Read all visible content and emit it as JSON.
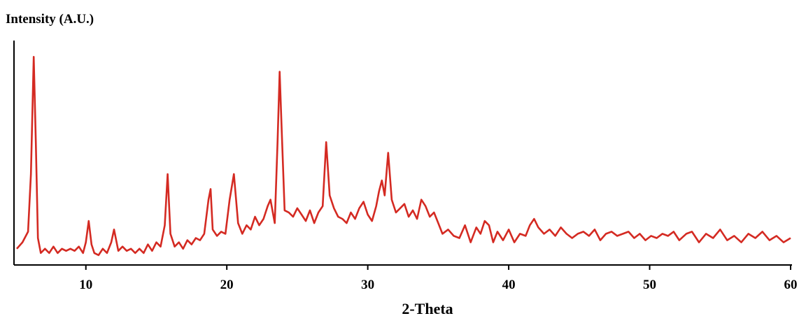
{
  "chart_data": {
    "type": "line",
    "title": "",
    "ylabel": "Intensity (A.U.)",
    "xlabel": "2-Theta",
    "xlim": [
      5,
      60
    ],
    "ylim": [
      0,
      100
    ],
    "x_ticks": [
      10,
      20,
      30,
      40,
      50,
      60
    ],
    "y_ticks": [],
    "grid": false,
    "legend": "none",
    "line_color": "#d42a22",
    "series": [
      {
        "x": [
          5.1,
          5.5,
          5.9,
          6.1,
          6.3,
          6.45,
          6.6,
          6.8,
          7.1,
          7.4,
          7.7,
          8.0,
          8.3,
          8.6,
          8.9,
          9.2,
          9.5,
          9.8,
          10.0,
          10.2,
          10.4,
          10.6,
          10.9,
          11.2,
          11.5,
          11.8,
          12.0,
          12.3,
          12.6,
          12.9,
          13.2,
          13.5,
          13.8,
          14.1,
          14.4,
          14.7,
          15.0,
          15.3,
          15.6,
          15.8,
          16.0,
          16.3,
          16.6,
          16.9,
          17.2,
          17.5,
          17.8,
          18.1,
          18.4,
          18.7,
          18.85,
          19.0,
          19.3,
          19.6,
          19.9,
          20.2,
          20.5,
          20.8,
          21.1,
          21.4,
          21.7,
          22.0,
          22.3,
          22.6,
          22.9,
          23.1,
          23.4,
          23.6,
          23.75,
          23.9,
          24.1,
          24.4,
          24.7,
          25.0,
          25.3,
          25.6,
          25.9,
          26.2,
          26.5,
          26.8,
          27.05,
          27.3,
          27.6,
          27.9,
          28.2,
          28.5,
          28.8,
          29.1,
          29.4,
          29.7,
          30.0,
          30.3,
          30.6,
          30.8,
          31.0,
          31.2,
          31.45,
          31.7,
          32.0,
          32.3,
          32.6,
          32.9,
          33.2,
          33.5,
          33.8,
          34.1,
          34.4,
          34.7,
          35.0,
          35.3,
          35.7,
          36.1,
          36.5,
          36.9,
          37.3,
          37.7,
          38.0,
          38.3,
          38.6,
          38.9,
          39.2,
          39.6,
          40.0,
          40.4,
          40.8,
          41.2,
          41.5,
          41.8,
          42.1,
          42.5,
          42.9,
          43.3,
          43.7,
          44.1,
          44.5,
          44.9,
          45.3,
          45.7,
          46.1,
          46.5,
          46.9,
          47.3,
          47.7,
          48.1,
          48.5,
          48.9,
          49.3,
          49.7,
          50.1,
          50.5,
          50.9,
          51.3,
          51.7,
          52.1,
          52.6,
          53.0,
          53.5,
          54.0,
          54.5,
          55.0,
          55.5,
          56.0,
          56.5,
          57.0,
          57.5,
          58.0,
          58.5,
          59.0,
          59.5,
          60.0
        ],
        "y": [
          5,
          8,
          13,
          40,
          95,
          55,
          10,
          3,
          5,
          3,
          6,
          3,
          5,
          4,
          5,
          4,
          6,
          3,
          8,
          18,
          7,
          3,
          2,
          5,
          3,
          8,
          14,
          4,
          6,
          4,
          5,
          3,
          5,
          3,
          7,
          4,
          8,
          6,
          16,
          40,
          12,
          6,
          8,
          5,
          9,
          7,
          10,
          9,
          12,
          28,
          33,
          14,
          11,
          13,
          12,
          28,
          40,
          17,
          12,
          16,
          14,
          20,
          16,
          19,
          25,
          28,
          17,
          55,
          88,
          60,
          23,
          22,
          20,
          24,
          21,
          18,
          23,
          17,
          22,
          25,
          55,
          30,
          24,
          20,
          19,
          17,
          22,
          19,
          24,
          27,
          21,
          18,
          25,
          32,
          37,
          30,
          50,
          28,
          22,
          24,
          26,
          20,
          23,
          19,
          28,
          25,
          20,
          22,
          17,
          12,
          14,
          11,
          10,
          16,
          8,
          15,
          12,
          18,
          16,
          8,
          13,
          9,
          14,
          8,
          12,
          11,
          16,
          19,
          15,
          12,
          14,
          11,
          15,
          12,
          10,
          12,
          13,
          11,
          14,
          9,
          12,
          13,
          11,
          12,
          13,
          10,
          12,
          9,
          11,
          10,
          12,
          11,
          13,
          9,
          12,
          13,
          8,
          12,
          10,
          14,
          9,
          11,
          8,
          12,
          10,
          13,
          9,
          11,
          8,
          10
        ]
      }
    ]
  }
}
